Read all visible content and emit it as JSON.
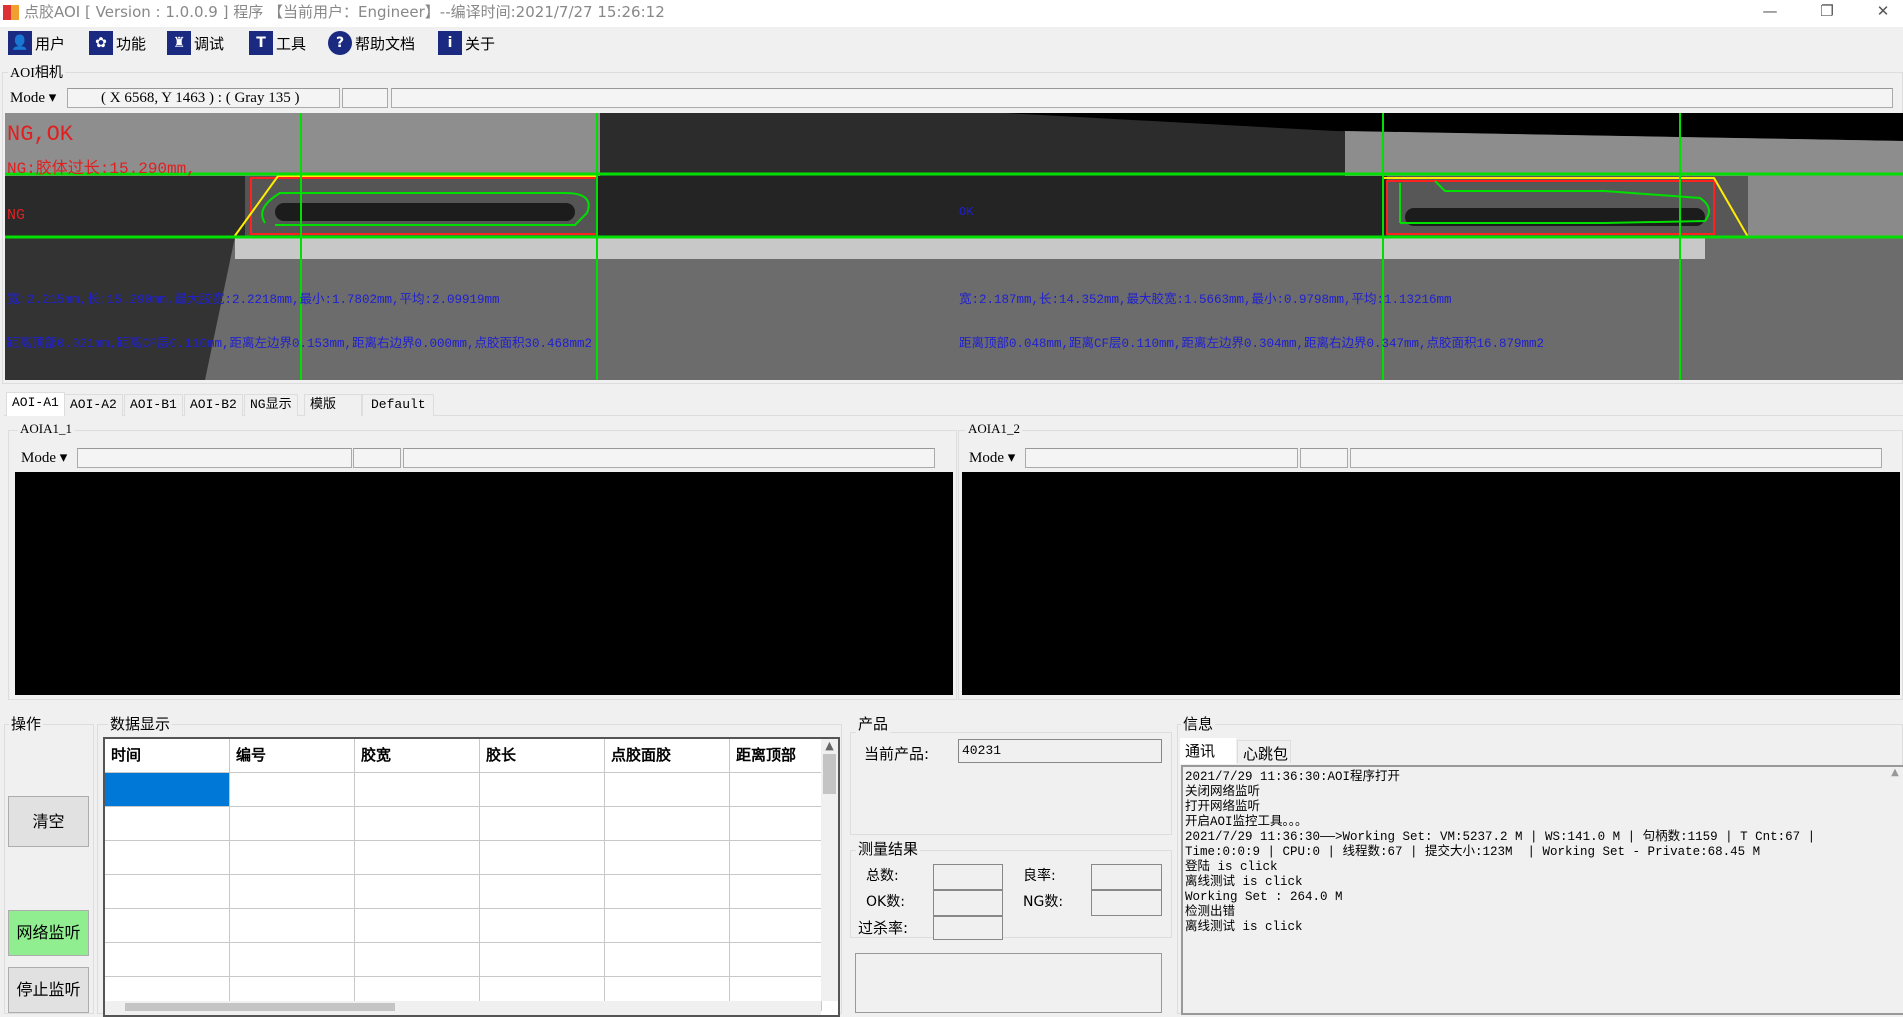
{
  "window": {
    "title": "点胶AOI [ Version : 1.0.0.9 ]  程序 【当前用户：Engineer】--编译时间:2021/7/27 15:26:12",
    "minimize": "—",
    "restore": "❐",
    "close": "✕"
  },
  "toolbar": [
    {
      "label": "用户",
      "icon": "user-icon",
      "glyph": "👤"
    },
    {
      "label": "功能",
      "icon": "gear-icon",
      "glyph": "✿"
    },
    {
      "label": "调试",
      "icon": "debug-icon",
      "glyph": "♜"
    },
    {
      "label": "工具",
      "icon": "hammer-icon",
      "glyph": "T"
    },
    {
      "label": "帮助文档",
      "icon": "help-icon",
      "glyph": "?"
    },
    {
      "label": "关于",
      "icon": "info-icon",
      "glyph": "i"
    }
  ],
  "camera": {
    "title": "AOI相机",
    "mode": "Mode ▾",
    "coords": "( X 6568, Y 1463 ) : ( Gray 135 )",
    "overlay": {
      "result": "NG,OK",
      "ng_reason": "NG:胶体过长:15.290mm,",
      "left_status": "NG",
      "right_status": "OK",
      "left_line1": "宽:2.215mm,长:15.290mm,最大胶宽:2.2218mm,最小:1.7802mm,平均:2.09919mm",
      "left_line2": "距离顶部0.021mm,距离CF层0.110mm,距离左边界0.153mm,距离右边界0.000mm,点胶面积30.468mm2",
      "right_line1": "宽:2.187mm,长:14.352mm,最大胶宽:1.5663mm,最小:0.9798mm,平均:1.13216mm",
      "right_line2": "距离顶部0.048mm,距离CF层0.110mm,距离左边界0.304mm,距离右边界0.347mm,点胶面积16.879mm2"
    },
    "colors": {
      "guide": "#00e000",
      "roi": "#ff2020",
      "outline": "#ffee00",
      "text_ng": "#e02020",
      "text_info": "#2020d0"
    }
  },
  "tabs": [
    "AOI-A1",
    "AOI-A2",
    "AOI-B1",
    "AOI-B2",
    "NG显示",
    "模版",
    "Default"
  ],
  "panels": [
    {
      "title": "AOIA1_1",
      "mode": "Mode ▾"
    },
    {
      "title": "AOIA1_2",
      "mode": "Mode ▾"
    }
  ],
  "ops": {
    "title": "操作",
    "clear": "清空",
    "listen": "网络监听",
    "stop": "停止监听",
    "listen_color": "#90ee90"
  },
  "grid": {
    "title": "数据显示",
    "columns": [
      "时间",
      "编号",
      "胶宽",
      "胶长",
      "点胶面胶",
      "距离顶部"
    ],
    "selected_color": "#0078d7"
  },
  "product": {
    "title": "产品",
    "current_label": "当前产品:",
    "current_value": "40231"
  },
  "results": {
    "title": "测量结果",
    "total": "总数:",
    "ok": "OK数:",
    "overkill": "过杀率:",
    "yield": "良率:",
    "ng": "NG数:"
  },
  "info": {
    "title": "信息",
    "tabs": [
      "通讯",
      "心跳包"
    ],
    "log": [
      "2021/7/29 11:36:30:AOI程序打开",
      "关闭网络监听",
      "打开网络监听",
      "开启AOI监控工具。。。",
      "2021/7/29 11:36:30——>Working Set: VM:5237.2 M | WS:141.0 M | 句柄数:1159 | T Cnt:67 |",
      "Time:0:0:9 | CPU:0 | 线程数:67 | 提交大小:123M  | Working Set - Private:68.45 M",
      "登陆 is click",
      "离线测试 is click",
      "Working Set : 264.0 M",
      "检测出错",
      "离线测试 is click"
    ]
  }
}
